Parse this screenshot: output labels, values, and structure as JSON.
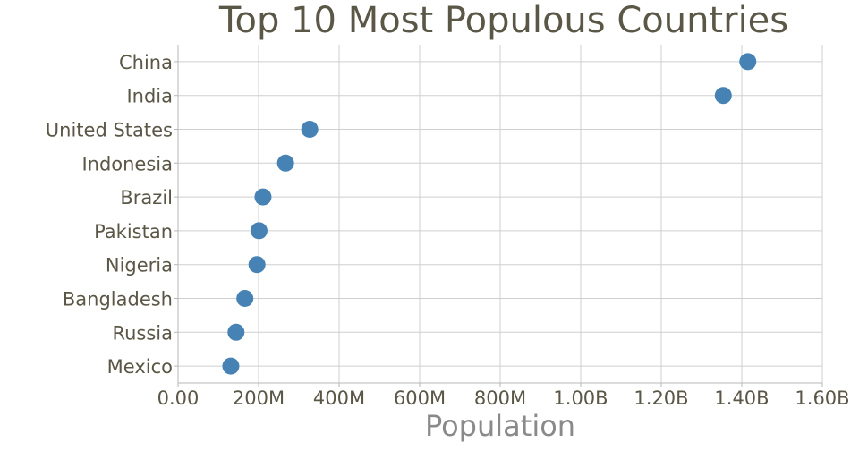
{
  "chart_data": {
    "type": "scatter",
    "title": "Top 10 Most Populous Countries",
    "xlabel": "Population",
    "ylabel": "",
    "xlim": [
      0,
      1600000000
    ],
    "x_ticks": [
      0,
      200000000,
      400000000,
      600000000,
      800000000,
      1000000000,
      1200000000,
      1400000000,
      1600000000
    ],
    "x_tick_labels": [
      "0.00",
      "200M",
      "400M",
      "600M",
      "800M",
      "1.00B",
      "1.20B",
      "1.40B",
      "1.60B"
    ],
    "categories": [
      "China",
      "India",
      "United States",
      "Indonesia",
      "Brazil",
      "Pakistan",
      "Nigeria",
      "Bangladesh",
      "Russia",
      "Mexico"
    ],
    "series": [
      {
        "values": [
          1415000000,
          1354000000,
          327000000,
          267000000,
          211000000,
          201000000,
          196000000,
          166000000,
          144000000,
          131000000
        ],
        "color": "#4682b4"
      }
    ],
    "grid": true,
    "legend": "none"
  }
}
